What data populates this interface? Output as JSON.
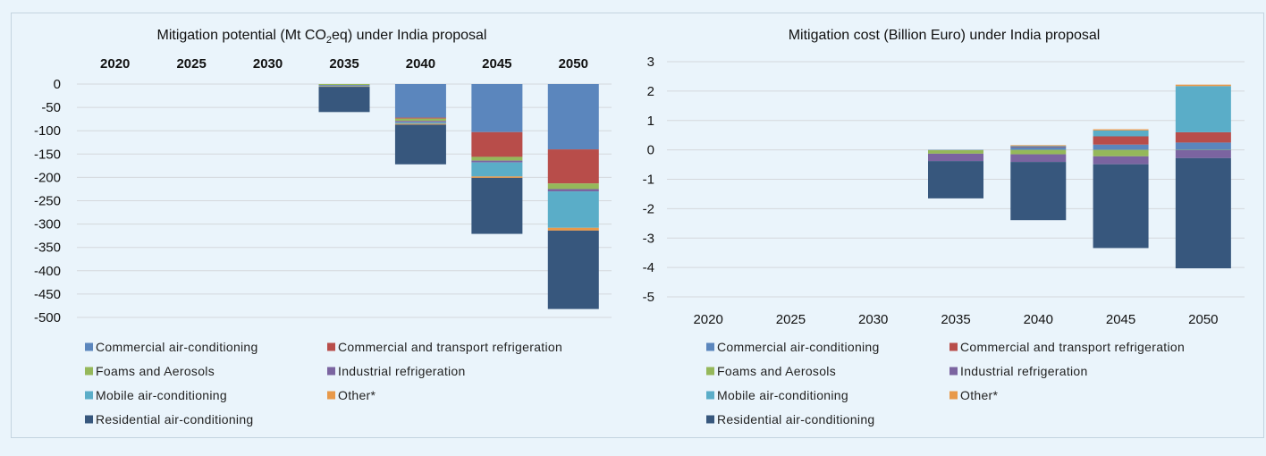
{
  "chart_data": [
    {
      "type": "bar",
      "stacked": true,
      "title": "Mitigation potential (Mt CO",
      "title_sub": "2",
      "title_end": "eq) under India proposal",
      "categories": [
        "2020",
        "2025",
        "2030",
        "2035",
        "2040",
        "2045",
        "2050"
      ],
      "x_axis_position": "top",
      "ylim": [
        -500,
        0
      ],
      "yticks": [
        "0",
        "-50",
        "-100",
        "-150",
        "-200",
        "-250",
        "-300",
        "-350",
        "-400",
        "-450",
        "-500"
      ],
      "grid": true,
      "legend_position": "bottom",
      "series": [
        {
          "name": "Commercial air-conditioning",
          "color": "#5b86bd",
          "values": [
            0,
            0,
            0,
            0,
            -72,
            -103,
            -140
          ]
        },
        {
          "name": "Commercial and transport refrigeration",
          "color": "#b84d4a",
          "values": [
            0,
            0,
            0,
            0,
            -2,
            -53,
            -73
          ]
        },
        {
          "name": "Foams and Aerosols",
          "color": "#95b85a",
          "values": [
            0,
            0,
            0,
            -2,
            -5,
            -8,
            -12
          ]
        },
        {
          "name": "Industrial refrigeration",
          "color": "#7b64a0",
          "values": [
            0,
            0,
            0,
            -1,
            -3,
            -4,
            -5
          ]
        },
        {
          "name": "Mobile air-conditioning",
          "color": "#5aadc8",
          "values": [
            0,
            0,
            0,
            -2,
            -3,
            -30,
            -78
          ]
        },
        {
          "name": "Other*",
          "color": "#e8994a",
          "values": [
            0,
            0,
            0,
            -1,
            -2,
            -3,
            -6
          ]
        },
        {
          "name": "Residential air-conditioning",
          "color": "#37577d",
          "values": [
            0,
            0,
            0,
            -54,
            -85,
            -120,
            -168
          ]
        }
      ]
    },
    {
      "type": "bar",
      "stacked": true,
      "title": "Mitigation  cost (Billion Euro) under India proposal",
      "categories": [
        "2020",
        "2025",
        "2030",
        "2035",
        "2040",
        "2045",
        "2050"
      ],
      "x_axis_position": "bottom",
      "ylim": [
        -5,
        3
      ],
      "yticks": [
        "3",
        "2",
        "1",
        "0",
        "-1",
        "-2",
        "-3",
        "-4",
        "-5"
      ],
      "grid": true,
      "legend_position": "bottom",
      "series": [
        {
          "name": "Commercial air-conditioning",
          "color": "#5b86bd",
          "values": [
            0,
            0,
            0,
            -0.01,
            0.1,
            0.18,
            0.25
          ]
        },
        {
          "name": "Commercial and transport refrigeration",
          "color": "#b84d4a",
          "values": [
            0,
            0,
            0,
            0,
            0.02,
            0.28,
            0.35
          ]
        },
        {
          "name": "Foams and Aerosols",
          "color": "#95b85a",
          "values": [
            0,
            0,
            0,
            -0.12,
            -0.15,
            -0.22,
            -0.01
          ]
        },
        {
          "name": "Industrial refrigeration",
          "color": "#7b64a0",
          "values": [
            0,
            0,
            0,
            -0.25,
            -0.26,
            -0.27,
            -0.27
          ]
        },
        {
          "name": "Mobile air-conditioning",
          "color": "#5aadc8",
          "values": [
            0,
            0,
            0,
            0,
            0.02,
            0.2,
            1.57
          ]
        },
        {
          "name": "Other*",
          "color": "#e8994a",
          "values": [
            0,
            0,
            0,
            0,
            0.02,
            0.04,
            0.05
          ]
        },
        {
          "name": "Residential air-conditioning",
          "color": "#37577d",
          "values": [
            0,
            0,
            0,
            -1.27,
            -1.98,
            -2.85,
            -3.75
          ]
        }
      ]
    }
  ]
}
